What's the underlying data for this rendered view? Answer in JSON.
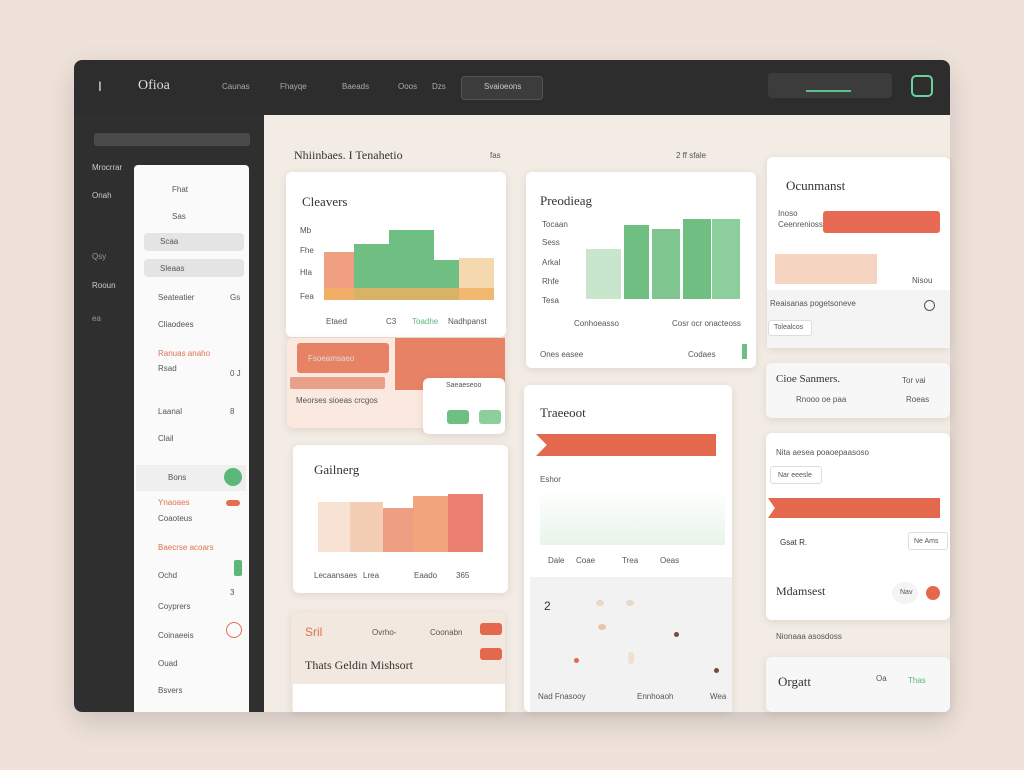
{
  "topbar": {
    "brand": "Ofioa",
    "nav": [
      "Caunas",
      "Fhayqe",
      "Baeads",
      "Ooos",
      "Dzs"
    ],
    "search": "Svaioeons"
  },
  "sidebar": {
    "labels": [
      "Mrocrrar",
      "Onah",
      "Qsy",
      "Rooun",
      "ea"
    ]
  },
  "panel": {
    "items": [
      "Fhat",
      "Sas",
      "Scaa",
      "Sleaas",
      "Seateatier",
      "Cliaodees",
      "Ranuas anaho",
      "Rsad",
      "Laanal",
      "Clail",
      "Bons",
      "Ynaoaes",
      "Coaoteus",
      "Baecrse acoars",
      "Ochd",
      "Coyprers",
      "Coinaeeis",
      "Ouad",
      "Bsvers"
    ],
    "side": [
      "Gs",
      "0 J",
      "8",
      "3"
    ]
  },
  "section": {
    "title": "Nhiinbaes. I Tenahetio",
    "meta": "fas",
    "meta2": "2 ff  sfale"
  },
  "cleavers": {
    "title": "Cleavers",
    "labels": [
      "Mb",
      "Fhe",
      "Hla",
      "Fea"
    ],
    "legend": [
      "Etaed",
      "C3",
      "Toadhe",
      "Nadhpanst"
    ]
  },
  "preodieag": {
    "title": "Preodieag",
    "labels": [
      "Tocaan",
      "Sess",
      "Arkal",
      "Rhfe",
      "Tesa"
    ],
    "legend": [
      "Conhoeasso",
      "Cosr ocr onacteoss"
    ],
    "footer": [
      "Ones easee",
      "Codaes"
    ]
  },
  "ocunmanst": {
    "title": "Ocunmanst",
    "rows": [
      "Inoso",
      "Ceenrenioss"
    ],
    "note": "Nisou",
    "caption": "Reaisanas pogetsoneve",
    "button": "Tolealcos"
  },
  "orange": {
    "title": "Fsoeamsaeo",
    "caption": "Meorses sioeas crcgos",
    "mini": "Saeaeseoo"
  },
  "gailnerg": {
    "title": "Gailnerg",
    "legend": [
      "Lecaansaes",
      "Lrea",
      "Eaado",
      "365"
    ]
  },
  "traeeoot": {
    "title": "Traeeoot",
    "label": "Eshor",
    "axis": [
      "Dale",
      "Coae",
      "Trea",
      "Oeas"
    ],
    "number": "2",
    "footer": [
      "Nad Fnasooy",
      "Ennhoaoh",
      "Wea"
    ]
  },
  "cioe": {
    "title": "Cioe Sanmers.",
    "meta": "Tor vai",
    "rows": [
      "Rnooo oe paa",
      "Roeas"
    ]
  },
  "mdam": {
    "header": "Nita aesea poaoepaasoso",
    "chip": "Nar eeesle",
    "row": "Gsat R.",
    "tag": "Ne Ams",
    "title": "Mdamsest",
    "badge": "Nav",
    "footer": "Nionaaa asosdoss"
  },
  "sril": {
    "title": "Sril",
    "meta": [
      "Ovrho-",
      "Coonabn"
    ],
    "heading": "Thats Geldin Mishsort"
  },
  "orgatt": {
    "title": "Orgatt",
    "meta": [
      "Oa",
      "Thas"
    ]
  }
}
